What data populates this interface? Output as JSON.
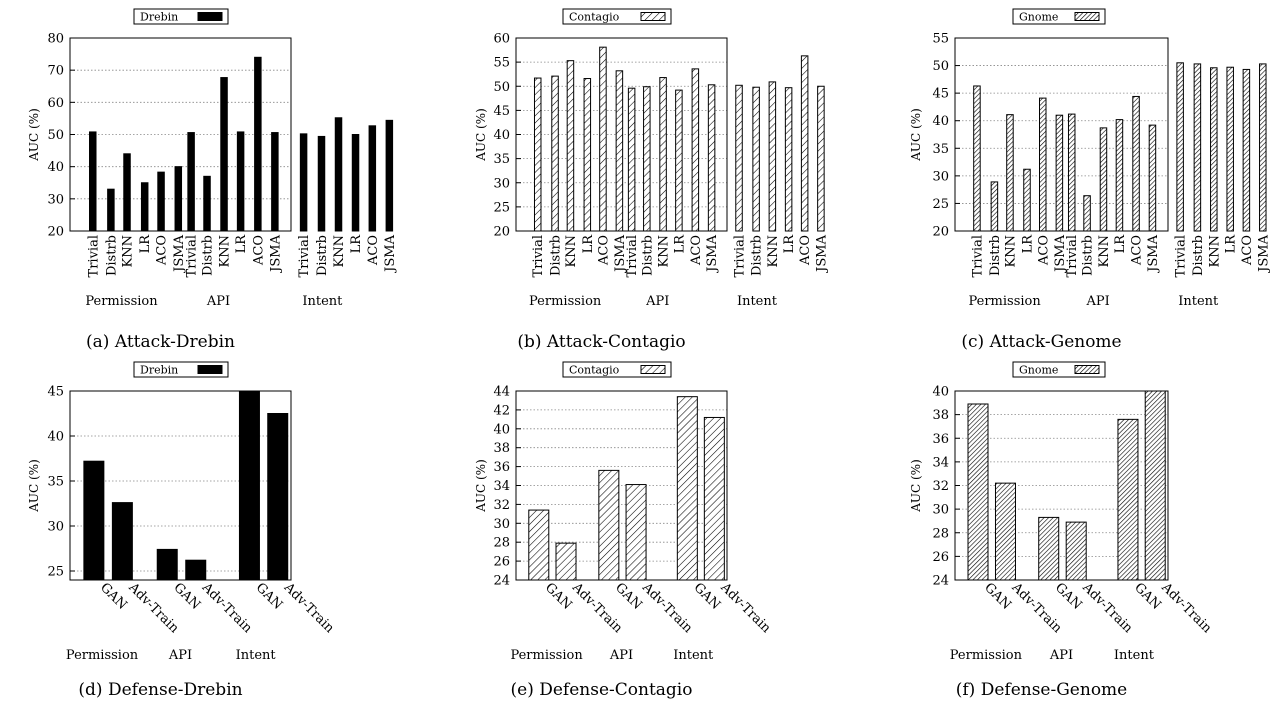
{
  "chart_data": [
    {
      "id": "a",
      "type": "bar",
      "caption": "(a) Attack-Drebin",
      "legend": "Drebin",
      "pattern": "solid",
      "ylabel": "AUC (%)",
      "ylim": [
        20,
        80
      ],
      "yticks": [
        20,
        30,
        40,
        50,
        60,
        70,
        80
      ],
      "categories": [
        "Trivial",
        "Distrb",
        "KNN",
        "LR",
        "ACO",
        "JSMA"
      ],
      "groups": [
        {
          "name": "Permission",
          "values": [
            50.8,
            33.0,
            44.0,
            35.0,
            38.3,
            40.0
          ]
        },
        {
          "name": "API",
          "values": [
            50.6,
            37.0,
            67.7,
            50.8,
            74.0,
            50.6
          ]
        },
        {
          "name": "Intent",
          "values": [
            50.2,
            49.4,
            55.2,
            50.0,
            52.7,
            54.4
          ]
        }
      ]
    },
    {
      "id": "b",
      "type": "bar",
      "caption": "(b) Attack-Contagio",
      "legend": "Contagio",
      "pattern": "hatch-sparse",
      "ylabel": "AUC (%)",
      "ylim": [
        20,
        60
      ],
      "yticks": [
        20,
        25,
        30,
        35,
        40,
        45,
        50,
        55,
        60
      ],
      "categories": [
        "Trivial",
        "Distrb",
        "KNN",
        "LR",
        "ACO",
        "JSMA"
      ],
      "groups": [
        {
          "name": "Permission",
          "values": [
            51.7,
            52.1,
            55.3,
            51.6,
            58.1,
            53.2
          ]
        },
        {
          "name": "API",
          "values": [
            49.6,
            49.9,
            51.8,
            49.2,
            53.6,
            50.3
          ]
        },
        {
          "name": "Intent",
          "values": [
            50.2,
            49.8,
            50.9,
            49.7,
            56.3,
            50.0
          ]
        }
      ]
    },
    {
      "id": "c",
      "type": "bar",
      "caption": "(c) Attack-Genome",
      "legend": "Gnome",
      "pattern": "hatch-dense",
      "ylabel": "AUC (%)",
      "ylim": [
        20,
        55
      ],
      "yticks": [
        20,
        25,
        30,
        35,
        40,
        45,
        50,
        55
      ],
      "categories": [
        "Trivial",
        "Distrb",
        "KNN",
        "LR",
        "ACO",
        "JSMA"
      ],
      "groups": [
        {
          "name": "Permission",
          "values": [
            46.3,
            28.9,
            41.1,
            31.2,
            44.1,
            41.0
          ]
        },
        {
          "name": "API",
          "values": [
            41.2,
            26.4,
            38.7,
            40.2,
            44.4,
            39.2
          ]
        },
        {
          "name": "Intent",
          "values": [
            50.5,
            50.3,
            49.6,
            49.7,
            49.3,
            50.3
          ]
        }
      ]
    },
    {
      "id": "d",
      "type": "bar",
      "caption": "(d) Defense-Drebin",
      "legend": "Drebin",
      "pattern": "solid",
      "ylabel": "AUC (%)",
      "ylim": [
        24,
        45
      ],
      "yticks": [
        25,
        30,
        35,
        40,
        45
      ],
      "categories": [
        "GAN",
        "Adv-Train"
      ],
      "groups": [
        {
          "name": "Permission",
          "values": [
            37.2,
            32.6
          ]
        },
        {
          "name": "API",
          "values": [
            27.4,
            26.2
          ]
        },
        {
          "name": "Intent",
          "values": [
            45.0,
            42.5
          ]
        }
      ]
    },
    {
      "id": "e",
      "type": "bar",
      "caption": "(e) Defense-Contagio",
      "legend": "Contagio",
      "pattern": "hatch-sparse",
      "ylabel": "AUC (%)",
      "ylim": [
        24,
        44
      ],
      "yticks": [
        24,
        26,
        28,
        30,
        32,
        34,
        36,
        38,
        40,
        42,
        44
      ],
      "categories": [
        "GAN",
        "Adv-Train"
      ],
      "groups": [
        {
          "name": "Permission",
          "values": [
            31.4,
            27.9
          ]
        },
        {
          "name": "API",
          "values": [
            35.6,
            34.1
          ]
        },
        {
          "name": "Intent",
          "values": [
            43.4,
            41.2
          ]
        }
      ]
    },
    {
      "id": "f",
      "type": "bar",
      "caption": "(f) Defense-Genome",
      "legend": "Gnome",
      "pattern": "hatch-dense",
      "ylabel": "AUC (%)",
      "ylim": [
        24,
        40
      ],
      "yticks": [
        24,
        26,
        28,
        30,
        32,
        34,
        36,
        38,
        40
      ],
      "categories": [
        "GAN",
        "Adv-Train"
      ],
      "groups": [
        {
          "name": "Permission",
          "values": [
            38.9,
            32.2
          ]
        },
        {
          "name": "API",
          "values": [
            29.3,
            28.9
          ]
        },
        {
          "name": "Intent",
          "values": [
            37.6,
            40.0
          ]
        }
      ]
    }
  ]
}
